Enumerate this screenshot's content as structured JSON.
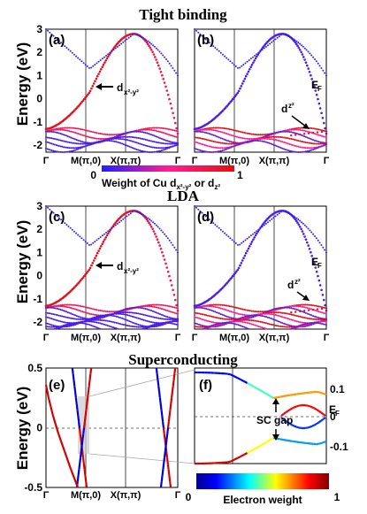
{
  "titles": {
    "tb": "Tight binding",
    "lda": "LDA",
    "sc": "Superconducting"
  },
  "ylabels": {
    "energy": "Energy (eV)"
  },
  "panels": {
    "a": "(a)",
    "b": "(b)",
    "c": "(c)",
    "d": "(d)",
    "e": "(e)",
    "f": "(f)"
  },
  "ticks": {
    "y_top": [
      "3",
      "2",
      "1",
      "0",
      "-1",
      "-2"
    ],
    "y_sc": [
      "0.5",
      "0",
      "-0.5"
    ],
    "k": [
      "Γ",
      "M(π,0)",
      "X(π,π)",
      "Γ"
    ],
    "f_right": [
      "0.1",
      "0",
      "-0.1"
    ]
  },
  "annotations": {
    "dx2y2": "d",
    "dx2y2_sub": "x²-y²",
    "dz2": "d",
    "dz2_sub": "z²",
    "ef": "E",
    "ef_sub": "F",
    "scgap": "SC gap"
  },
  "colorbar1": {
    "min": "0",
    "max": "1",
    "label": "Weight of Cu d",
    "label_sub1": "x²-y²",
    "label_mid": " or d",
    "label_sub2": "z²",
    "colors": [
      "#1f1fff",
      "#ff1f8f",
      "#e01010"
    ]
  },
  "colorbar2": {
    "min": "0",
    "max": "1",
    "label": "Electron weight",
    "colors": [
      "#00008f",
      "#0000ff",
      "#00ffff",
      "#ffff00",
      "#ff0000",
      "#800000"
    ]
  },
  "chart_data": [
    {
      "type": "line",
      "panel": "a",
      "title": "Tight binding",
      "ylabel": "Energy (eV)",
      "ylim": [
        -2.3,
        3
      ],
      "xticks": [
        "Γ",
        "M(π,0)",
        "X(π,π)",
        "Γ"
      ]
    },
    {
      "type": "line",
      "panel": "b",
      "title": "Tight binding",
      "ylim": [
        -2.3,
        3
      ],
      "xticks": [
        "Γ",
        "M(π,0)",
        "X(π,π)",
        "Γ"
      ]
    },
    {
      "type": "line",
      "panel": "c",
      "title": "LDA",
      "ylabel": "Energy (eV)",
      "ylim": [
        -2.3,
        3
      ],
      "xticks": [
        "Γ",
        "M(π,0)",
        "X(π,π)",
        "Γ"
      ]
    },
    {
      "type": "line",
      "panel": "d",
      "title": "LDA",
      "ylim": [
        -2.3,
        3
      ],
      "xticks": [
        "Γ",
        "M(π,0)",
        "X(π,π)",
        "Γ"
      ]
    },
    {
      "type": "line",
      "panel": "e",
      "title": "Superconducting",
      "ylabel": "Energy (eV)",
      "ylim": [
        -0.5,
        0.5
      ],
      "xticks": [
        "Γ",
        "M(π,0)",
        "X(π,π)",
        "Γ"
      ]
    },
    {
      "type": "line",
      "panel": "f",
      "ylim": [
        -0.15,
        0.15
      ],
      "yticks": [
        "0.1",
        "0",
        "-0.1"
      ]
    }
  ]
}
